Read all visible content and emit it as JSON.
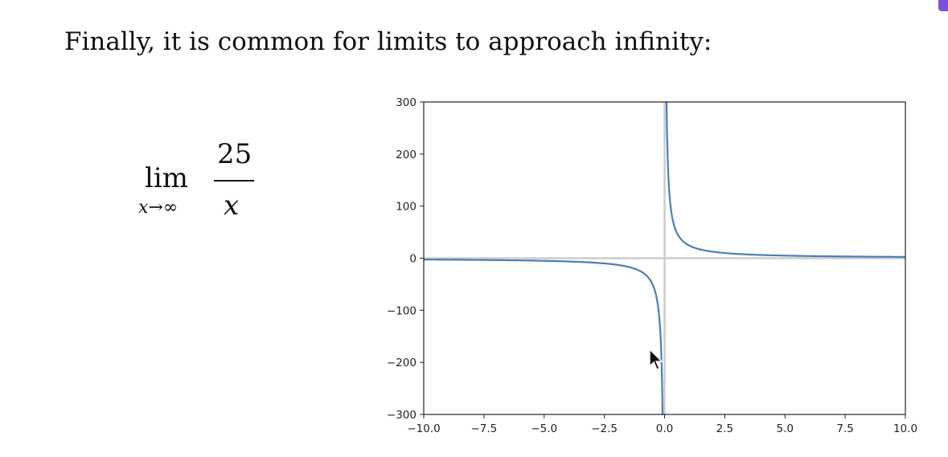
{
  "intro_text": "Finally, it is common for limits to approach infinity:",
  "formula": {
    "lim": "lim",
    "subscript": "x→∞",
    "numerator": "25",
    "denominator": "x"
  },
  "colors": {
    "curve": "#4a7fb5",
    "zero_lines": "#cccccc",
    "accent": "#7b4fe0"
  },
  "chart_data": {
    "type": "line",
    "function": "25/x",
    "xlim": [
      -10,
      10
    ],
    "ylim": [
      -300,
      300
    ],
    "xticks": [
      "−10.0",
      "−7.5",
      "−5.0",
      "−2.5",
      "0.0",
      "2.5",
      "5.0",
      "7.5",
      "10.0"
    ],
    "yticks": [
      "300",
      "200",
      "100",
      "0",
      "−100",
      "−200",
      "−300"
    ],
    "xtick_values": [
      -10,
      -7.5,
      -5,
      -2.5,
      0,
      2.5,
      5,
      7.5,
      10
    ],
    "ytick_values": [
      300,
      200,
      100,
      0,
      -100,
      -200,
      -300
    ],
    "series": [
      {
        "segments": [
          {
            "x": [
              -10,
              -8,
              -6,
              -4,
              -3,
              -2,
              -1.5,
              -1,
              -0.75,
              -0.5,
              -0.35,
              -0.25,
              -0.15,
              -0.12,
              -0.1,
              -0.09,
              -0.0833
            ],
            "y": [
              -2.5,
              -3.125,
              -4.167,
              -6.25,
              -8.333,
              -12.5,
              -16.667,
              -25,
              -33.333,
              -50,
              -71.429,
              -100,
              -166.667,
              -208.333,
              -250,
              -277.778,
              -300
            ]
          },
          {
            "x": [
              0.0833,
              0.09,
              0.1,
              0.12,
              0.15,
              0.25,
              0.35,
              0.5,
              0.75,
              1,
              1.5,
              2,
              3,
              4,
              6,
              8,
              10
            ],
            "y": [
              300,
              277.778,
              250,
              208.333,
              166.667,
              100,
              71.429,
              50,
              33.333,
              25,
              16.667,
              12.5,
              8.333,
              6.25,
              4.167,
              3.125,
              2.5
            ]
          }
        ]
      }
    ],
    "grid": false,
    "zero_lines": true,
    "legend": "none"
  }
}
